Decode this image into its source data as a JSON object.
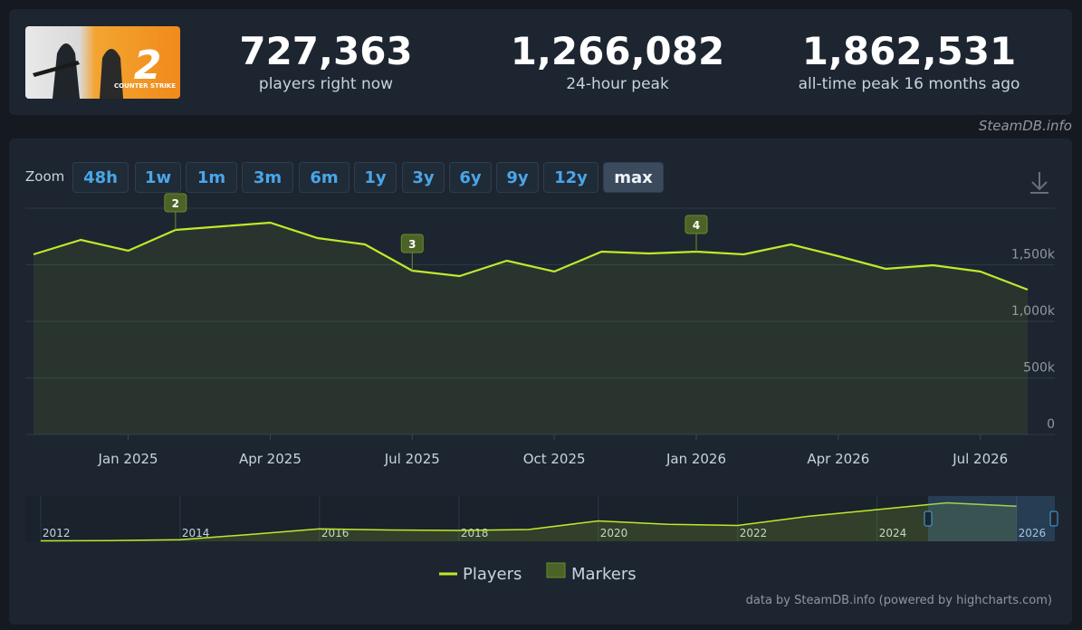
{
  "header": {
    "logo": {
      "title": "COUNTER STRIKE",
      "number": "2"
    },
    "stats": [
      {
        "value": "727,363",
        "label": "players right now"
      },
      {
        "value": "1,266,082",
        "label": "24-hour peak"
      },
      {
        "value": "1,862,531",
        "label": "all-time peak 16 months ago"
      }
    ],
    "site": "SteamDB.info"
  },
  "zoom": {
    "label": "Zoom",
    "buttons": [
      "48h",
      "1w",
      "1m",
      "3m",
      "6m",
      "1y",
      "3y",
      "6y",
      "9y",
      "12y",
      "max"
    ],
    "active": 10
  },
  "credits": "data by SteamDB.info (powered by highcharts.com)",
  "chart_data": {
    "type": "line",
    "x": [
      "2024-11",
      "2024-12",
      "2025-01",
      "2025-02",
      "2025-03",
      "2025-04",
      "2025-05",
      "2025-06",
      "2025-07",
      "2025-08",
      "2025-09",
      "2025-10",
      "2025-11",
      "2025-12",
      "2026-01",
      "2026-02",
      "2026-03",
      "2026-04",
      "2026-05",
      "2026-06",
      "2026-07",
      "2026-08"
    ],
    "series": [
      {
        "name": "Players",
        "color": "#bfe92b",
        "values": [
          1592000,
          1720000,
          1624000,
          1808000,
          1840000,
          1872000,
          1736000,
          1680000,
          1448000,
          1400000,
          1536000,
          1440000,
          1616000,
          1600000,
          1616000,
          1592000,
          1680000,
          1576000,
          1464000,
          1496000,
          1440000,
          1280000
        ]
      }
    ],
    "xticks": [
      {
        "value": "2025-01",
        "label": "Jan 2025"
      },
      {
        "value": "2025-04",
        "label": "Apr 2025"
      },
      {
        "value": "2025-07",
        "label": "Jul 2025"
      },
      {
        "value": "2025-10",
        "label": "Oct 2025"
      },
      {
        "value": "2026-01",
        "label": "Jan 2026"
      },
      {
        "value": "2026-04",
        "label": "Apr 2026"
      },
      {
        "value": "2026-07",
        "label": "Jul 2026"
      }
    ],
    "ylim": [
      0,
      2000000
    ],
    "yticks": [
      0,
      {
        "value": 500000,
        "label": "500k"
      },
      {
        "value": 1000000,
        "label": "1,000k"
      },
      {
        "value": 1500000,
        "label": "1,500k"
      }
    ],
    "grid": true,
    "markers": {
      "name": "Markers",
      "color": "#4b6326",
      "items": [
        {
          "x": "2025-02",
          "label": "2"
        },
        {
          "x": "2025-07",
          "label": "3"
        },
        {
          "x": "2026-01",
          "label": "4"
        }
      ]
    },
    "navigator": {
      "x": [
        2012,
        2013,
        2014,
        2015,
        2016,
        2017,
        2018,
        2019,
        2020,
        2021,
        2022,
        2023,
        2024,
        2025,
        2026
      ],
      "values": [
        20000,
        30000,
        70000,
        300000,
        550000,
        500000,
        480000,
        520000,
        900000,
        750000,
        700000,
        1100000,
        1400000,
        1700000,
        1550000
      ],
      "xlim": [
        2011.78,
        2026.55
      ],
      "ylim": [
        0,
        2000000
      ],
      "xticks": [
        2012,
        2014,
        2016,
        2018,
        2020,
        2022,
        2024,
        2026
      ]
    }
  }
}
